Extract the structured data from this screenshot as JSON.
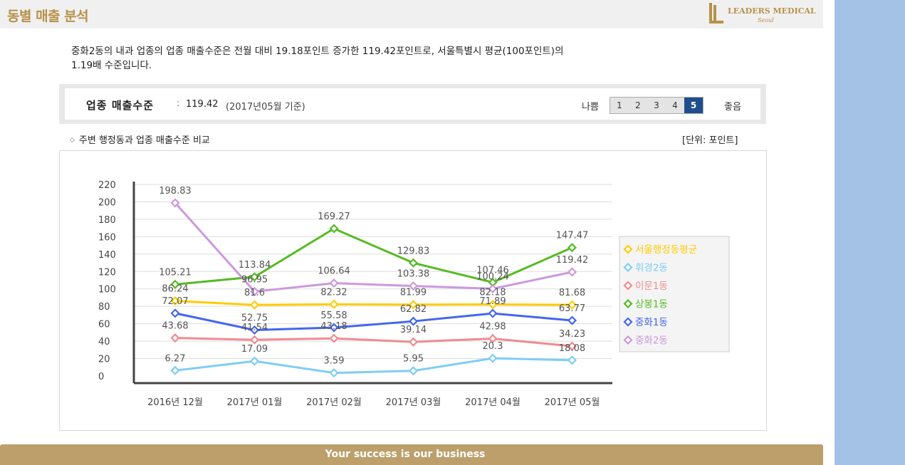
{
  "page": {
    "title": "동별 매출 분석",
    "logo_text": "LEADERS MEDICAL",
    "logo_sub": "Seoul",
    "footer": "Your success is our business"
  },
  "summary": {
    "line1": "중화2동의 내과 업종의 업종 매출수준은 전월 대비 19.18포인트 증가한 119.42포인트로, 서울특별시 평균(100포인트)의",
    "line2": "1.19배 수준입니다."
  },
  "score": {
    "label": "업종 매출수준",
    "colon": ":",
    "value": "119.42",
    "date": "(2017년05월 기준)",
    "bad_label": "나쁨",
    "good_label": "좋음",
    "grades": [
      "1",
      "2",
      "3",
      "4",
      "5"
    ],
    "active_grade": 5
  },
  "chart_section": {
    "title": "주변 행정동과 업종 매출수준 비교",
    "unit": "[단위: 포인트]"
  },
  "chart_data": {
    "type": "line",
    "categories": [
      "2016년 12월",
      "2017년 01월",
      "2017년 02월",
      "2017년 03월",
      "2017년 04월",
      "2017년 05월"
    ],
    "ylim": [
      0,
      220
    ],
    "yticks": [
      0,
      20,
      40,
      60,
      80,
      100,
      120,
      140,
      160,
      180,
      200,
      220
    ],
    "grid": true,
    "legend_position": "right",
    "series": [
      {
        "name": "서울행정동평균",
        "color": "#ffcc00",
        "values": [
          86.24,
          81.6,
          82.32,
          81.99,
          82.18,
          81.68
        ]
      },
      {
        "name": "휘경2동",
        "color": "#7fcdf5",
        "values": [
          6.27,
          17.09,
          3.59,
          5.95,
          20.3,
          18.08
        ]
      },
      {
        "name": "이문1동",
        "color": "#f08a8f",
        "values": [
          43.68,
          41.54,
          43.18,
          39.14,
          42.98,
          34.23
        ]
      },
      {
        "name": "상봉1동",
        "color": "#55bb22",
        "values": [
          105.21,
          113.84,
          169.27,
          129.83,
          107.46,
          147.47
        ]
      },
      {
        "name": "중화1동",
        "color": "#4466ee",
        "values": [
          72.07,
          52.75,
          55.58,
          62.82,
          71.89,
          63.77
        ]
      },
      {
        "name": "중화2동",
        "color": "#cc99dd",
        "values": [
          198.83,
          96.95,
          106.64,
          103.38,
          100.24,
          119.42
        ]
      }
    ]
  }
}
